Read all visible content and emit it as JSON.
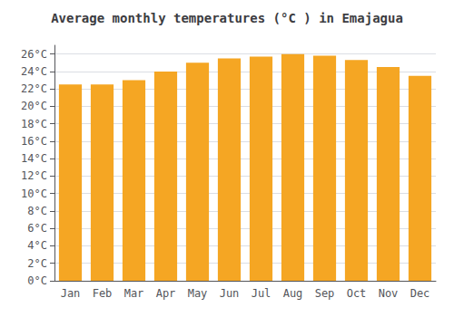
{
  "chart_data": {
    "type": "bar",
    "title": "Average monthly temperatures (°C ) in Emajagua",
    "categories": [
      "Jan",
      "Feb",
      "Mar",
      "Apr",
      "May",
      "Jun",
      "Jul",
      "Aug",
      "Sep",
      "Oct",
      "Nov",
      "Dec"
    ],
    "values": [
      22.5,
      22.5,
      23.0,
      24.0,
      25.0,
      25.5,
      25.7,
      26.0,
      25.8,
      25.3,
      24.5,
      23.5
    ],
    "color": "#F5A623",
    "ylim": [
      0,
      27
    ],
    "yticks": [
      {
        "value": 0,
        "label": "0°C"
      },
      {
        "value": 2,
        "label": "2°C"
      },
      {
        "value": 4,
        "label": "4°C"
      },
      {
        "value": 6,
        "label": "6°C"
      },
      {
        "value": 8,
        "label": "8°C"
      },
      {
        "value": 10,
        "label": "10°C"
      },
      {
        "value": 12,
        "label": "12°C"
      },
      {
        "value": 14,
        "label": "14°C"
      },
      {
        "value": 16,
        "label": "16°C"
      },
      {
        "value": 18,
        "label": "18°C"
      },
      {
        "value": 20,
        "label": "20°C"
      },
      {
        "value": 22,
        "label": "22°C"
      },
      {
        "value": 24,
        "label": "24°C"
      },
      {
        "value": 26,
        "label": "26°C"
      }
    ],
    "grid": true
  }
}
